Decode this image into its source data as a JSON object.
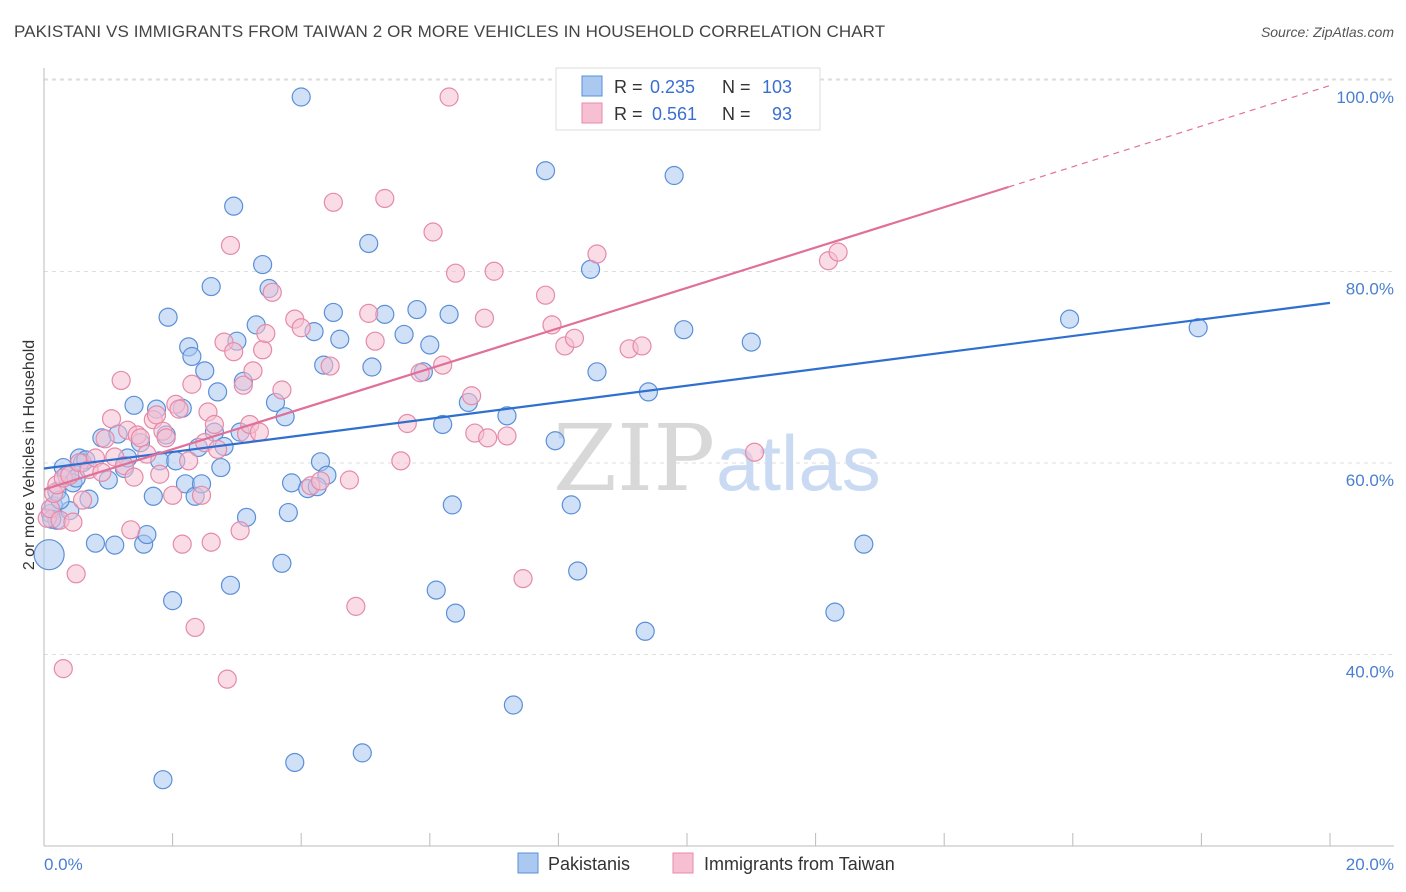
{
  "title": "PAKISTANI VS IMMIGRANTS FROM TAIWAN 2 OR MORE VEHICLES IN HOUSEHOLD CORRELATION CHART",
  "source": "Source: ZipAtlas.com",
  "watermark": {
    "zip": "ZIP",
    "atlas": "atlas"
  },
  "legend_top": [
    {
      "r_label": "R =",
      "r_value": "0.235",
      "n_label": "N =",
      "n_value": "103"
    },
    {
      "r_label": "R =",
      "r_value": "0.561",
      "n_label": "N =",
      "n_value": "93"
    }
  ],
  "legend_bottom": [
    "Pakistanis",
    "Immigrants from Taiwan"
  ],
  "colors": {
    "blue_fill": "#aac8f0",
    "blue_stroke": "#5b8fd8",
    "blue_line": "#2e6fd0",
    "pink_fill": "#f6c0d2",
    "pink_stroke": "#e58aa8",
    "pink_line": "#e0709a",
    "tick": "#4a7fd0",
    "grid": "#dddddd"
  },
  "chart_data": {
    "type": "scatter",
    "title": "PAKISTANI VS IMMIGRANTS FROM TAIWAN 2 OR MORE VEHICLES IN HOUSEHOLD CORRELATION CHART",
    "xlabel": "",
    "ylabel": "2 or more Vehicles in Household",
    "xlim": [
      0,
      20
    ],
    "ylim": [
      22,
      102
    ],
    "x_tick_labels": [
      "0.0%",
      "20.0%"
    ],
    "y_ticks": [
      40,
      60,
      80,
      100
    ],
    "y_tick_labels": [
      "40.0%",
      "60.0%",
      "80.0%",
      "100.0%"
    ],
    "grid": true,
    "legend_position": "top-center",
    "series": [
      {
        "name": "Pakistanis",
        "R": 0.235,
        "N": 103,
        "trend": {
          "x0": 0,
          "y0": 61.2,
          "x1": 20,
          "y1": 78.5
        },
        "points": [
          [
            0.08,
            52.2
          ],
          [
            0.1,
            56.5
          ],
          [
            0.15,
            57.3
          ],
          [
            0.2,
            58.8
          ],
          [
            0.2,
            55.8
          ],
          [
            0.3,
            61.3
          ],
          [
            0.35,
            60.5
          ],
          [
            0.4,
            56.8
          ],
          [
            0.45,
            59.7
          ],
          [
            0.5,
            60.2
          ],
          [
            0.55,
            62.3
          ],
          [
            0.6,
            61.8
          ],
          [
            0.7,
            58.0
          ],
          [
            0.8,
            53.4
          ],
          [
            0.9,
            64.4
          ],
          [
            1.0,
            60.0
          ],
          [
            1.1,
            53.2
          ],
          [
            1.15,
            64.8
          ],
          [
            1.25,
            61.2
          ],
          [
            1.4,
            67.8
          ],
          [
            1.5,
            63.9
          ],
          [
            1.55,
            53.3
          ],
          [
            1.6,
            54.3
          ],
          [
            1.7,
            58.3
          ],
          [
            1.75,
            67.4
          ],
          [
            1.8,
            62.0
          ],
          [
            1.85,
            28.7
          ],
          [
            1.9,
            64.7
          ],
          [
            1.93,
            77.0
          ],
          [
            2.0,
            47.4
          ],
          [
            2.05,
            62.0
          ],
          [
            2.15,
            67.5
          ],
          [
            2.2,
            59.6
          ],
          [
            2.25,
            73.9
          ],
          [
            2.3,
            72.9
          ],
          [
            2.35,
            58.3
          ],
          [
            2.4,
            63.4
          ],
          [
            2.45,
            59.6
          ],
          [
            2.5,
            71.4
          ],
          [
            2.6,
            80.2
          ],
          [
            2.65,
            65.0
          ],
          [
            2.7,
            69.2
          ],
          [
            2.75,
            61.3
          ],
          [
            2.8,
            63.5
          ],
          [
            2.9,
            49.0
          ],
          [
            2.95,
            88.6
          ],
          [
            3.0,
            74.5
          ],
          [
            3.05,
            65.0
          ],
          [
            3.1,
            70.3
          ],
          [
            3.15,
            56.1
          ],
          [
            3.3,
            76.2
          ],
          [
            3.4,
            82.5
          ],
          [
            3.5,
            80.0
          ],
          [
            3.6,
            68.1
          ],
          [
            3.7,
            51.3
          ],
          [
            3.75,
            66.6
          ],
          [
            3.8,
            56.6
          ],
          [
            3.85,
            59.7
          ],
          [
            3.9,
            30.5
          ],
          [
            4.0,
            100.0
          ],
          [
            4.1,
            59.1
          ],
          [
            4.2,
            75.5
          ],
          [
            4.3,
            61.9
          ],
          [
            4.35,
            72.0
          ],
          [
            4.4,
            60.5
          ],
          [
            4.5,
            77.5
          ],
          [
            4.6,
            74.7
          ],
          [
            4.95,
            31.5
          ],
          [
            5.05,
            84.7
          ],
          [
            5.1,
            71.8
          ],
          [
            5.3,
            77.3
          ],
          [
            5.6,
            75.2
          ],
          [
            5.8,
            77.8
          ],
          [
            5.9,
            71.3
          ],
          [
            6.0,
            74.1
          ],
          [
            6.1,
            48.5
          ],
          [
            6.2,
            65.8
          ],
          [
            6.3,
            77.3
          ],
          [
            6.35,
            57.4
          ],
          [
            6.4,
            46.1
          ],
          [
            6.6,
            68.1
          ],
          [
            7.2,
            66.7
          ],
          [
            7.3,
            36.5
          ],
          [
            7.8,
            92.3
          ],
          [
            7.95,
            64.1
          ],
          [
            8.2,
            57.4
          ],
          [
            8.3,
            50.5
          ],
          [
            8.5,
            82.0
          ],
          [
            8.6,
            71.3
          ],
          [
            9.35,
            44.2
          ],
          [
            9.4,
            69.2
          ],
          [
            9.8,
            91.8
          ],
          [
            9.95,
            75.7
          ],
          [
            11.0,
            74.4
          ],
          [
            12.3,
            46.2
          ],
          [
            12.75,
            53.3
          ],
          [
            15.95,
            76.8
          ],
          [
            17.95,
            75.9
          ],
          [
            0.25,
            57.9
          ],
          [
            0.12,
            55.9
          ],
          [
            0.65,
            62.1
          ],
          [
            1.3,
            62.3
          ],
          [
            4.25,
            59.3
          ]
        ]
      },
      {
        "name": "Immigrants from Taiwan",
        "R": 0.561,
        "N": 93,
        "trend": {
          "x0": 0,
          "y0": 59.0,
          "x1": 15.0,
          "y1": 90.6,
          "dash_x1": 20,
          "dash_y1": 101.2
        },
        "points": [
          [
            0.05,
            56.0
          ],
          [
            0.1,
            57.0
          ],
          [
            0.15,
            58.6
          ],
          [
            0.2,
            59.5
          ],
          [
            0.25,
            55.8
          ],
          [
            0.3,
            60.2
          ],
          [
            0.3,
            40.3
          ],
          [
            0.4,
            60.5
          ],
          [
            0.45,
            55.6
          ],
          [
            0.5,
            50.2
          ],
          [
            0.55,
            61.8
          ],
          [
            0.6,
            57.9
          ],
          [
            0.7,
            61.1
          ],
          [
            0.8,
            62.3
          ],
          [
            0.9,
            60.8
          ],
          [
            0.95,
            64.3
          ],
          [
            1.05,
            66.4
          ],
          [
            1.1,
            62.4
          ],
          [
            1.2,
            70.4
          ],
          [
            1.25,
            61.5
          ],
          [
            1.3,
            65.2
          ],
          [
            1.35,
            54.8
          ],
          [
            1.4,
            60.3
          ],
          [
            1.45,
            64.7
          ],
          [
            1.5,
            64.4
          ],
          [
            1.6,
            62.7
          ],
          [
            1.7,
            66.3
          ],
          [
            1.75,
            66.8
          ],
          [
            1.8,
            60.6
          ],
          [
            1.85,
            65.1
          ],
          [
            1.9,
            64.4
          ],
          [
            2.0,
            58.4
          ],
          [
            2.05,
            67.9
          ],
          [
            2.1,
            67.4
          ],
          [
            2.15,
            53.3
          ],
          [
            2.25,
            62.0
          ],
          [
            2.3,
            70.0
          ],
          [
            2.35,
            44.6
          ],
          [
            2.45,
            58.4
          ],
          [
            2.5,
            63.9
          ],
          [
            2.55,
            67.1
          ],
          [
            2.6,
            53.5
          ],
          [
            2.65,
            65.8
          ],
          [
            2.7,
            63.2
          ],
          [
            2.8,
            74.4
          ],
          [
            2.85,
            39.2
          ],
          [
            2.9,
            84.5
          ],
          [
            2.95,
            73.4
          ],
          [
            3.05,
            54.7
          ],
          [
            3.1,
            69.9
          ],
          [
            3.15,
            64.8
          ],
          [
            3.2,
            65.8
          ],
          [
            3.25,
            71.4
          ],
          [
            3.35,
            65.0
          ],
          [
            3.4,
            73.6
          ],
          [
            3.45,
            75.3
          ],
          [
            3.55,
            79.6
          ],
          [
            3.7,
            69.4
          ],
          [
            3.9,
            76.8
          ],
          [
            4.0,
            75.9
          ],
          [
            4.15,
            59.4
          ],
          [
            4.3,
            59.9
          ],
          [
            4.45,
            71.9
          ],
          [
            4.5,
            89.0
          ],
          [
            4.75,
            60.0
          ],
          [
            4.85,
            46.8
          ],
          [
            5.05,
            77.4
          ],
          [
            5.15,
            74.5
          ],
          [
            5.3,
            89.4
          ],
          [
            5.55,
            62.0
          ],
          [
            5.65,
            65.9
          ],
          [
            5.85,
            71.2
          ],
          [
            6.05,
            85.9
          ],
          [
            6.2,
            72.0
          ],
          [
            6.3,
            100.0
          ],
          [
            6.4,
            81.6
          ],
          [
            6.65,
            68.8
          ],
          [
            6.7,
            64.9
          ],
          [
            6.85,
            76.9
          ],
          [
            6.9,
            64.4
          ],
          [
            7.0,
            81.8
          ],
          [
            7.2,
            64.6
          ],
          [
            7.45,
            49.7
          ],
          [
            7.8,
            79.3
          ],
          [
            7.9,
            76.2
          ],
          [
            8.1,
            74.0
          ],
          [
            8.25,
            74.8
          ],
          [
            8.6,
            83.6
          ],
          [
            9.1,
            73.7
          ],
          [
            9.3,
            74.0
          ],
          [
            11.05,
            62.9
          ],
          [
            12.2,
            82.9
          ],
          [
            12.35,
            83.8
          ]
        ]
      }
    ]
  }
}
